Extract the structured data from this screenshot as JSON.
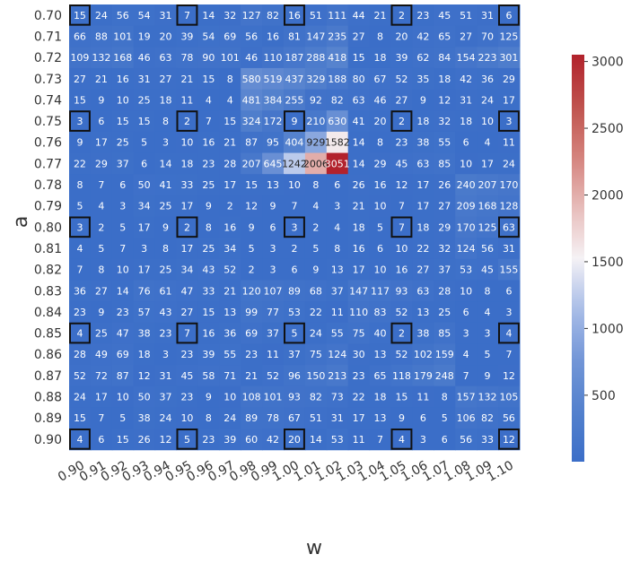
{
  "chart_data": {
    "type": "heatmap",
    "xlabel": "w",
    "ylabel": "a",
    "x": [
      "0.90",
      "0.91",
      "0.92",
      "0.93",
      "0.94",
      "0.95",
      "0.96",
      "0.97",
      "0.98",
      "0.99",
      "1.00",
      "1.01",
      "1.02",
      "1.03",
      "1.04",
      "1.05",
      "1.06",
      "1.07",
      "1.08",
      "1.09",
      "1.10"
    ],
    "y": [
      "0.70",
      "0.71",
      "0.72",
      "0.73",
      "0.74",
      "0.75",
      "0.76",
      "0.77",
      "0.78",
      "0.79",
      "0.80",
      "0.81",
      "0.82",
      "0.83",
      "0.84",
      "0.85",
      "0.86",
      "0.87",
      "0.88",
      "0.89",
      "0.90"
    ],
    "values": [
      [
        15,
        24,
        56,
        54,
        31,
        7,
        14,
        32,
        127,
        82,
        16,
        51,
        111,
        44,
        21,
        2,
        23,
        45,
        51,
        31,
        6
      ],
      [
        66,
        88,
        101,
        19,
        20,
        39,
        54,
        69,
        56,
        16,
        81,
        147,
        235,
        27,
        8,
        20,
        42,
        65,
        27,
        70,
        125
      ],
      [
        109,
        132,
        168,
        46,
        63,
        78,
        90,
        101,
        46,
        110,
        187,
        288,
        418,
        15,
        18,
        39,
        62,
        84,
        154,
        223,
        301
      ],
      [
        27,
        21,
        16,
        31,
        27,
        21,
        15,
        8,
        580,
        519,
        437,
        329,
        188,
        80,
        67,
        52,
        35,
        18,
        42,
        36,
        29
      ],
      [
        15,
        9,
        10,
        25,
        18,
        11,
        4,
        4,
        481,
        384,
        255,
        92,
        82,
        63,
        46,
        27,
        9,
        12,
        31,
        24,
        17
      ],
      [
        3,
        6,
        15,
        15,
        8,
        2,
        7,
        15,
        324,
        172,
        9,
        210,
        630,
        41,
        20,
        2,
        18,
        32,
        18,
        10,
        3
      ],
      [
        9,
        17,
        25,
        5,
        3,
        10,
        16,
        21,
        87,
        95,
        404,
        929,
        1582,
        14,
        8,
        23,
        38,
        55,
        6,
        4,
        11
      ],
      [
        22,
        29,
        37,
        6,
        14,
        18,
        23,
        28,
        207,
        645,
        1242,
        2006,
        3051,
        14,
        29,
        45,
        63,
        85,
        10,
        17,
        24
      ],
      [
        8,
        7,
        6,
        50,
        41,
        33,
        25,
        17,
        15,
        13,
        10,
        8,
        6,
        26,
        16,
        12,
        17,
        26,
        240,
        207,
        170
      ],
      [
        5,
        4,
        3,
        34,
        25,
        17,
        9,
        2,
        12,
        9,
        7,
        4,
        3,
        21,
        10,
        7,
        17,
        27,
        209,
        168,
        128
      ],
      [
        3,
        2,
        5,
        17,
        9,
        2,
        8,
        16,
        9,
        6,
        3,
        2,
        4,
        18,
        5,
        7,
        18,
        29,
        170,
        125,
        63
      ],
      [
        4,
        5,
        7,
        3,
        8,
        17,
        25,
        34,
        5,
        3,
        2,
        5,
        8,
        16,
        6,
        10,
        22,
        32,
        124,
        56,
        31
      ],
      [
        7,
        8,
        10,
        17,
        25,
        34,
        43,
        52,
        2,
        3,
        6,
        9,
        13,
        17,
        10,
        16,
        27,
        37,
        53,
        45,
        155
      ],
      [
        36,
        27,
        14,
        76,
        61,
        47,
        33,
        21,
        120,
        107,
        89,
        68,
        37,
        147,
        117,
        93,
        63,
        28,
        10,
        8,
        6
      ],
      [
        23,
        9,
        23,
        57,
        43,
        27,
        15,
        13,
        99,
        77,
        53,
        22,
        11,
        110,
        83,
        52,
        13,
        25,
        6,
        4,
        3
      ],
      [
        4,
        25,
        47,
        38,
        23,
        7,
        16,
        36,
        69,
        37,
        5,
        24,
        55,
        75,
        40,
        2,
        38,
        85,
        3,
        3,
        4
      ],
      [
        28,
        49,
        69,
        18,
        3,
        23,
        39,
        55,
        23,
        11,
        37,
        75,
        124,
        30,
        13,
        52,
        102,
        159,
        4,
        5,
        7
      ],
      [
        52,
        72,
        87,
        12,
        31,
        45,
        58,
        71,
        21,
        52,
        96,
        150,
        213,
        23,
        65,
        118,
        179,
        248,
        7,
        9,
        12
      ],
      [
        24,
        17,
        10,
        50,
        37,
        23,
        9,
        10,
        108,
        101,
        93,
        82,
        73,
        22,
        18,
        15,
        11,
        8,
        157,
        132,
        105
      ],
      [
        15,
        7,
        5,
        38,
        24,
        10,
        8,
        24,
        89,
        78,
        67,
        51,
        31,
        17,
        13,
        9,
        6,
        5,
        106,
        82,
        56
      ],
      [
        4,
        6,
        15,
        26,
        12,
        5,
        23,
        39,
        60,
        42,
        20,
        14,
        53,
        11,
        7,
        4,
        3,
        6,
        56,
        33,
        12
      ]
    ],
    "highlighted_cells": [
      [
        0,
        0
      ],
      [
        0,
        5
      ],
      [
        0,
        10
      ],
      [
        0,
        15
      ],
      [
        0,
        20
      ],
      [
        5,
        0
      ],
      [
        5,
        5
      ],
      [
        5,
        10
      ],
      [
        5,
        15
      ],
      [
        5,
        20
      ],
      [
        10,
        0
      ],
      [
        10,
        5
      ],
      [
        10,
        10
      ],
      [
        10,
        15
      ],
      [
        10,
        20
      ],
      [
        15,
        0
      ],
      [
        15,
        5
      ],
      [
        15,
        10
      ],
      [
        15,
        15
      ],
      [
        15,
        20
      ],
      [
        20,
        0
      ],
      [
        20,
        5
      ],
      [
        20,
        10
      ],
      [
        20,
        15
      ],
      [
        20,
        20
      ]
    ],
    "colorbar": {
      "colormap": "coolwarm",
      "min": 2,
      "max": 3051,
      "ticks": [
        500,
        1000,
        1500,
        2000,
        2500,
        3000
      ]
    }
  }
}
